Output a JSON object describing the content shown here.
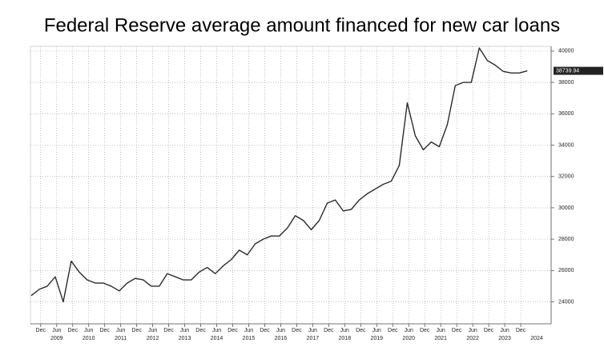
{
  "chart_data": {
    "type": "line",
    "title": "Federal Reserve average amount financed for new car loans",
    "x": [
      2008.625,
      2008.875,
      2009.125,
      2009.375,
      2009.625,
      2009.875,
      2010.125,
      2010.375,
      2010.625,
      2010.875,
      2011.125,
      2011.375,
      2011.625,
      2011.875,
      2012.125,
      2012.375,
      2012.625,
      2012.875,
      2013.125,
      2013.375,
      2013.625,
      2013.875,
      2014.125,
      2014.375,
      2014.625,
      2014.875,
      2015.125,
      2015.375,
      2015.625,
      2015.875,
      2016.125,
      2016.375,
      2016.625,
      2016.875,
      2017.125,
      2017.375,
      2017.625,
      2017.875,
      2018.125,
      2018.375,
      2018.625,
      2018.875,
      2019.125,
      2019.375,
      2019.625,
      2019.875,
      2020.125,
      2020.375,
      2020.625,
      2020.875,
      2021.125,
      2021.375,
      2021.625,
      2021.875,
      2022.125,
      2022.375,
      2022.625,
      2022.875,
      2023.125,
      2023.375,
      2023.625,
      2023.875,
      2024.125
    ],
    "series": [
      {
        "name": "Average amount financed",
        "color": "#2b2b2b",
        "values": [
          24400,
          24800,
          25000,
          25600,
          24000,
          26600,
          25900,
          25400,
          25200,
          25200,
          25000,
          24700,
          25200,
          25500,
          25400,
          25000,
          25000,
          25800,
          25600,
          25400,
          25400,
          25900,
          26200,
          25800,
          26300,
          26700,
          27300,
          27000,
          27700,
          28000,
          28200,
          28200,
          28700,
          29500,
          29200,
          28600,
          29200,
          30300,
          30500,
          29800,
          29900,
          30500,
          30900,
          31200,
          31500,
          31700,
          32700,
          36700,
          34600,
          33700,
          34200,
          33900,
          35300,
          37800,
          38000,
          38000,
          40200,
          39400,
          39100,
          38700,
          38600,
          38600,
          38739.94
        ]
      }
    ],
    "last_value_label": "38739.94",
    "xlim": [
      2008.6,
      2024.87
    ],
    "ylim": [
      22600,
      40300
    ],
    "yticks": [
      24000,
      26000,
      28000,
      30000,
      32000,
      34000,
      36000,
      38000,
      40000
    ],
    "xticks": [
      {
        "value": 2008.92,
        "label": "Dec"
      },
      {
        "value": 2009.42,
        "label": "Jun"
      },
      {
        "value": 2009.92,
        "label": "Dec"
      },
      {
        "value": 2010.42,
        "label": "Jun"
      },
      {
        "value": 2010.92,
        "label": "Dec"
      },
      {
        "value": 2011.42,
        "label": "Jun"
      },
      {
        "value": 2011.92,
        "label": "Dec"
      },
      {
        "value": 2012.42,
        "label": "Jun"
      },
      {
        "value": 2012.92,
        "label": "Dec"
      },
      {
        "value": 2013.42,
        "label": "Jun"
      },
      {
        "value": 2013.92,
        "label": "Dec"
      },
      {
        "value": 2014.42,
        "label": "Jun"
      },
      {
        "value": 2014.92,
        "label": "Dec"
      },
      {
        "value": 2015.42,
        "label": "Jun"
      },
      {
        "value": 2015.92,
        "label": "Dec"
      },
      {
        "value": 2016.42,
        "label": "Jun"
      },
      {
        "value": 2016.92,
        "label": "Dec"
      },
      {
        "value": 2017.42,
        "label": "Jun"
      },
      {
        "value": 2017.92,
        "label": "Dec"
      },
      {
        "value": 2018.42,
        "label": "Jun"
      },
      {
        "value": 2018.92,
        "label": "Dec"
      },
      {
        "value": 2019.42,
        "label": "Jun"
      },
      {
        "value": 2019.92,
        "label": "Dec"
      },
      {
        "value": 2020.42,
        "label": "Jun"
      },
      {
        "value": 2020.92,
        "label": "Dec"
      },
      {
        "value": 2021.42,
        "label": "Jun"
      },
      {
        "value": 2021.92,
        "label": "Dec"
      },
      {
        "value": 2022.42,
        "label": "Jun"
      },
      {
        "value": 2022.92,
        "label": "Dec"
      },
      {
        "value": 2023.42,
        "label": "Jun"
      },
      {
        "value": 2023.92,
        "label": "Dec"
      }
    ],
    "year_labels": [
      {
        "value": 2009.42,
        "label": "2009"
      },
      {
        "value": 2010.42,
        "label": "2010"
      },
      {
        "value": 2011.42,
        "label": "2011"
      },
      {
        "value": 2012.42,
        "label": "2012"
      },
      {
        "value": 2013.42,
        "label": "2013"
      },
      {
        "value": 2014.42,
        "label": "2014"
      },
      {
        "value": 2015.42,
        "label": "2015"
      },
      {
        "value": 2016.42,
        "label": "2016"
      },
      {
        "value": 2017.42,
        "label": "2017"
      },
      {
        "value": 2018.42,
        "label": "2018"
      },
      {
        "value": 2019.42,
        "label": "2019"
      },
      {
        "value": 2020.42,
        "label": "2020"
      },
      {
        "value": 2021.42,
        "label": "2021"
      },
      {
        "value": 2022.42,
        "label": "2022"
      },
      {
        "value": 2023.42,
        "label": "2023"
      },
      {
        "value": 2024.42,
        "label": "2024"
      }
    ],
    "grid": true
  }
}
